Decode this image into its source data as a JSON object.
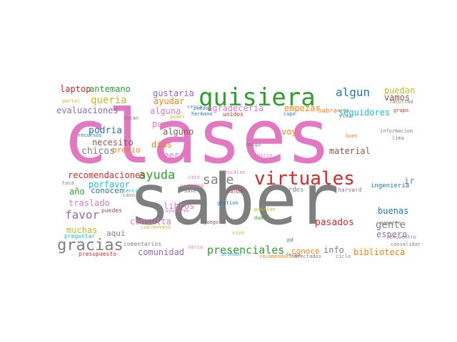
{
  "word_cloud": {
    "words": [
      {
        "text": "clases",
        "color": "#e377c2",
        "icon_hint": "",
        "rank": 1
      },
      {
        "text": "saber",
        "color": "#7f7f7f",
        "rank": 2
      },
      {
        "text": "quisiera",
        "color": "#2ca02c",
        "rank": 3
      },
      {
        "text": "virtuales",
        "color": "#d62728",
        "rank": 4
      },
      {
        "text": "gracias",
        "color": "#7f7f7f",
        "rank": 5
      },
      {
        "text": "ayuda",
        "color": "#2ca02c",
        "rank": 6
      },
      {
        "text": "sabe",
        "color": "#7f7f7f",
        "rank": 7
      },
      {
        "text": "presenciales",
        "color": "#2ca02c",
        "rank": 8
      },
      {
        "text": "favor",
        "color": "#9467bd",
        "rank": 9
      },
      {
        "text": "algun",
        "color": "#1f77b4",
        "rank": 10
      },
      {
        "text": "queria",
        "color": "#bcbd22",
        "rank": 11
      },
      {
        "text": "laptop",
        "color": "#d62728",
        "rank": 12
      },
      {
        "text": "antemano",
        "color": "#2ca02c",
        "rank": 13
      },
      {
        "text": "gustaria",
        "color": "#9467bd",
        "rank": 14
      },
      {
        "text": "ayudar",
        "color": "#ff7f0e",
        "rank": 15
      },
      {
        "text": "agradeceria",
        "color": "#e377c2",
        "rank": 16
      },
      {
        "text": "empezar",
        "color": "#ff7f0e",
        "rank": 17
      },
      {
        "text": "puedan",
        "color": "#bcbd22",
        "rank": 18
      },
      {
        "text": "vamos",
        "color": "#8c564b",
        "rank": 19
      },
      {
        "text": "evaluaciones",
        "color": "#9467bd",
        "rank": 20
      },
      {
        "text": "alguna",
        "color": "#e377c2",
        "rank": 21
      },
      {
        "text": "seguidores",
        "color": "#17becf",
        "rank": 22
      },
      {
        "text": "pueda",
        "color": "#e377c2",
        "rank": 23
      },
      {
        "text": "podria",
        "color": "#1f77b4",
        "rank": 24
      },
      {
        "text": "alguno",
        "color": "#8c564b",
        "rank": 25
      },
      {
        "text": "voy",
        "color": "#ff7f0e",
        "rank": 26
      },
      {
        "text": "necesito",
        "color": "#8c564b",
        "rank": 27
      },
      {
        "text": "dias",
        "color": "#ff7f0e",
        "rank": 28
      },
      {
        "text": "chicos",
        "color": "#7f7f7f",
        "rank": 29
      },
      {
        "text": "precio",
        "color": "#ff7f0e",
        "rank": 30
      },
      {
        "text": "leer",
        "color": "#e377c2",
        "rank": 31
      },
      {
        "text": "material",
        "color": "#8c564b",
        "rank": 32
      },
      {
        "text": "recomendaciones",
        "color": "#d62728",
        "rank": 33
      },
      {
        "text": "porfavor",
        "color": "#17becf",
        "rank": 34
      },
      {
        "text": "ir",
        "color": "#7f7f7f",
        "rank": 35
      },
      {
        "text": "año",
        "color": "#2ca02c",
        "rank": 36
      },
      {
        "text": "conocen",
        "color": "#1f77b4",
        "rank": 37
      },
      {
        "text": "ingenieria",
        "color": "#1f77b4",
        "rank": 38
      },
      {
        "text": "traslado",
        "color": "#e377c2",
        "rank": 39
      },
      {
        "text": "libros",
        "color": "#e377c2",
        "rank": 40
      },
      {
        "text": "buenas",
        "color": "#1f77b4",
        "rank": 41
      },
      {
        "text": "consulta",
        "color": "#e377c2",
        "rank": 42
      },
      {
        "text": "pasados",
        "color": "#d62728",
        "rank": 43
      },
      {
        "text": "gente",
        "color": "#7f7f7f",
        "rank": 44
      },
      {
        "text": "espero",
        "color": "#9467bd",
        "rank": 45
      },
      {
        "text": "muchas",
        "color": "#bcbd22",
        "rank": 46
      },
      {
        "text": "aqui",
        "color": "#7f7f7f",
        "rank": 47
      },
      {
        "text": "info",
        "color": "#7f7f7f",
        "rank": 48
      },
      {
        "text": "conoce",
        "color": "#ff7f0e",
        "rank": 49
      },
      {
        "text": "comunidad",
        "color": "#9467bd",
        "rank": 50
      },
      {
        "text": "biblioteca",
        "color": "#ff7f0e",
        "rank": 51
      },
      {
        "text": "puedes",
        "color": "#8c564b",
        "rank": 52
      },
      {
        "text": "comentarios",
        "color": "#7f7f7f",
        "rank": 53
      },
      {
        "text": "presupuesto",
        "color": "#d62728",
        "rank": 54
      },
      {
        "text": "preguntar",
        "color": "#17becf",
        "rank": 55
      },
      {
        "text": "tardes",
        "color": "#7f7f7f",
        "rank": 56
      },
      {
        "text": "harvard",
        "color": "#7f7f7f",
        "rank": 57
      },
      {
        "text": "salud",
        "color": "#d62728",
        "rank": 58
      },
      {
        "text": "cachimbo",
        "color": "#e377c2",
        "rank": 59
      },
      {
        "text": "base",
        "color": "#7f7f7f",
        "rank": 60
      },
      {
        "text": "gestion",
        "color": "#1f77b4",
        "rank": 61
      },
      {
        "text": "juego",
        "color": "#8c564b",
        "rank": 62
      },
      {
        "text": "podrian",
        "color": "#bcbd22",
        "rank": 63
      },
      {
        "text": "ayudarme",
        "color": "#e377c2",
        "rank": 64
      },
      {
        "text": "cuarentena",
        "color": "#bcbd22",
        "rank": 65
      },
      {
        "text": "seria",
        "color": "#e377c2",
        "rank": 66
      },
      {
        "text": "pd",
        "color": "#1f77b4",
        "rank": 67
      },
      {
        "text": "vivo",
        "color": "#bcbd22",
        "rank": 68
      },
      {
        "text": "brindar",
        "color": "#17becf",
        "rank": 69
      },
      {
        "text": "recomendacion",
        "color": "#ff7f0e",
        "rank": 70
      },
      {
        "text": "afectados",
        "color": "#7f7f7f",
        "rank": 71
      },
      {
        "text": "ciclo",
        "color": "#7f7f7f",
        "rank": 72
      },
      {
        "text": "convalidar",
        "color": "#7f7f7f",
        "rank": 73
      },
      {
        "text": "encuentro",
        "color": "#7f7f7f",
        "rank": 74
      },
      {
        "text": "maestro",
        "color": "#7f7f7f",
        "rank": 75
      },
      {
        "text": "duda",
        "color": "#2ca02c",
        "rank": 76
      },
      {
        "text": "unidos",
        "color": "#d62728",
        "rank": 77
      },
      {
        "text": "cerca",
        "color": "#7f7f7f",
        "rank": 78
      },
      {
        "text": "puedo",
        "color": "#1f77b4",
        "rank": 79
      },
      {
        "text": "hermano",
        "color": "#1f77b4",
        "rank": 80
      },
      {
        "text": "cupo",
        "color": "#1f77b4",
        "rank": 81
      },
      {
        "text": "habra",
        "color": "#ff7f0e",
        "rank": 82
      },
      {
        "text": "area",
        "color": "#7f7f7f",
        "rank": 83
      },
      {
        "text": "facultad",
        "color": "#7f7f7f",
        "rank": 84
      },
      {
        "text": "grupo",
        "color": "#d62728",
        "rank": 85
      },
      {
        "text": "portal",
        "color": "#bcbd22",
        "rank": 86
      },
      {
        "text": "estan",
        "color": "#7f7f7f",
        "rank": 87
      },
      {
        "text": "recursos",
        "color": "#1f77b4",
        "rank": 88
      },
      {
        "text": "poder",
        "color": "#bcbd22",
        "rank": 89
      },
      {
        "text": "amiga",
        "color": "#7f7f7f",
        "rank": 90
      },
      {
        "text": "buen",
        "color": "#ff7f0e",
        "rank": 91
      },
      {
        "text": "informacion",
        "color": "#7f7f7f",
        "rank": 92
      },
      {
        "text": "lima",
        "color": "#7f7f7f",
        "rank": 93
      },
      {
        "text": "inicio",
        "color": "#e377c2",
        "rank": 94
      },
      {
        "text": "escalas",
        "color": "#e377c2",
        "rank": 95
      },
      {
        "text": "toca",
        "color": "#7f7f7f",
        "rank": 96
      },
      {
        "text": "tercio",
        "color": "#17becf",
        "rank": 97
      },
      {
        "text": "caso",
        "color": "#7f7f7f",
        "rank": 98
      },
      {
        "text": "cato",
        "color": "#e377c2",
        "rank": 99
      },
      {
        "text": "fecha",
        "color": "#7f7f7f",
        "rank": 100
      },
      {
        "text": "vida",
        "color": "#7f7f7f",
        "rank": 101
      }
    ]
  }
}
